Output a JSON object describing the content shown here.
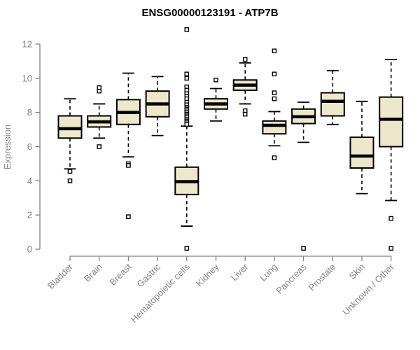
{
  "chart_data": {
    "type": "boxplot",
    "title": "ENSG00000123191 - ATP7B",
    "ylabel": "Expression",
    "xlabel": "",
    "ylim": [
      0,
      12
    ],
    "yticks": [
      0,
      2,
      4,
      6,
      8,
      10,
      12
    ],
    "grid": false,
    "legend": "none",
    "colors": {
      "box_fill": "#EDE7CC",
      "box_border": "#000000",
      "median": "#000000",
      "whisker": "#000000",
      "axis": "#848484",
      "title": "#000000"
    },
    "categories": [
      "Bladder",
      "Brain",
      "Breast",
      "Gastric",
      "Hematopoietic cells",
      "Kidney",
      "Liver",
      "Lung",
      "Pancreas",
      "Prostate",
      "Skin",
      "Unknown / Other"
    ],
    "series": [
      {
        "name": "Bladder",
        "whisker_low": 4.7,
        "q1": 6.5,
        "median": 7.05,
        "q3": 7.8,
        "whisker_high": 8.8,
        "outliers": [
          4.55,
          4.0
        ]
      },
      {
        "name": "Brain",
        "whisker_low": 6.5,
        "q1": 7.15,
        "median": 7.45,
        "q3": 7.8,
        "whisker_high": 8.5,
        "outliers": [
          9.45,
          9.25,
          6.0
        ]
      },
      {
        "name": "Breast",
        "whisker_low": 5.4,
        "q1": 7.3,
        "median": 8.0,
        "q3": 8.75,
        "whisker_high": 10.3,
        "outliers": [
          5.0,
          4.9,
          1.9
        ]
      },
      {
        "name": "Gastric",
        "whisker_low": 6.65,
        "q1": 7.75,
        "median": 8.5,
        "q3": 9.25,
        "whisker_high": 10.1,
        "outliers": []
      },
      {
        "name": "Hematopoietic cells",
        "whisker_low": 1.35,
        "q1": 3.2,
        "median": 3.95,
        "q3": 4.8,
        "whisker_high": 7.2,
        "outliers": [
          12.85,
          10.25,
          10.0,
          9.5,
          9.3,
          9.1,
          8.95,
          8.8,
          8.6,
          8.45,
          8.3,
          8.2,
          8.1,
          8.0,
          7.9,
          7.8,
          7.7,
          7.6,
          7.5,
          7.4,
          7.3,
          0.05
        ]
      },
      {
        "name": "Kidney",
        "whisker_low": 7.5,
        "q1": 8.2,
        "median": 8.5,
        "q3": 8.8,
        "whisker_high": 9.4,
        "outliers": [
          9.9
        ]
      },
      {
        "name": "Liver",
        "whisker_low": 8.5,
        "q1": 9.3,
        "median": 9.6,
        "q3": 9.9,
        "whisker_high": 10.9,
        "outliers": [
          11.1,
          8.1,
          7.9
        ]
      },
      {
        "name": "Lung",
        "whisker_low": 6.05,
        "q1": 6.75,
        "median": 7.25,
        "q3": 7.5,
        "whisker_high": 8.05,
        "outliers": [
          11.6,
          10.25,
          9.15,
          8.8,
          5.35
        ]
      },
      {
        "name": "Pancreas",
        "whisker_low": 6.25,
        "q1": 7.35,
        "median": 7.75,
        "q3": 8.2,
        "whisker_high": 8.6,
        "outliers": [
          0.05
        ]
      },
      {
        "name": "Prostate",
        "whisker_low": 7.3,
        "q1": 7.8,
        "median": 8.65,
        "q3": 9.15,
        "whisker_high": 10.45,
        "outliers": []
      },
      {
        "name": "Skin",
        "whisker_low": 3.25,
        "q1": 4.75,
        "median": 5.45,
        "q3": 6.55,
        "whisker_high": 8.65,
        "outliers": []
      },
      {
        "name": "Unknown / Other",
        "whisker_low": 2.85,
        "q1": 6.0,
        "median": 7.6,
        "q3": 8.9,
        "whisker_high": 11.1,
        "outliers": [
          1.8,
          0.05
        ]
      }
    ]
  }
}
